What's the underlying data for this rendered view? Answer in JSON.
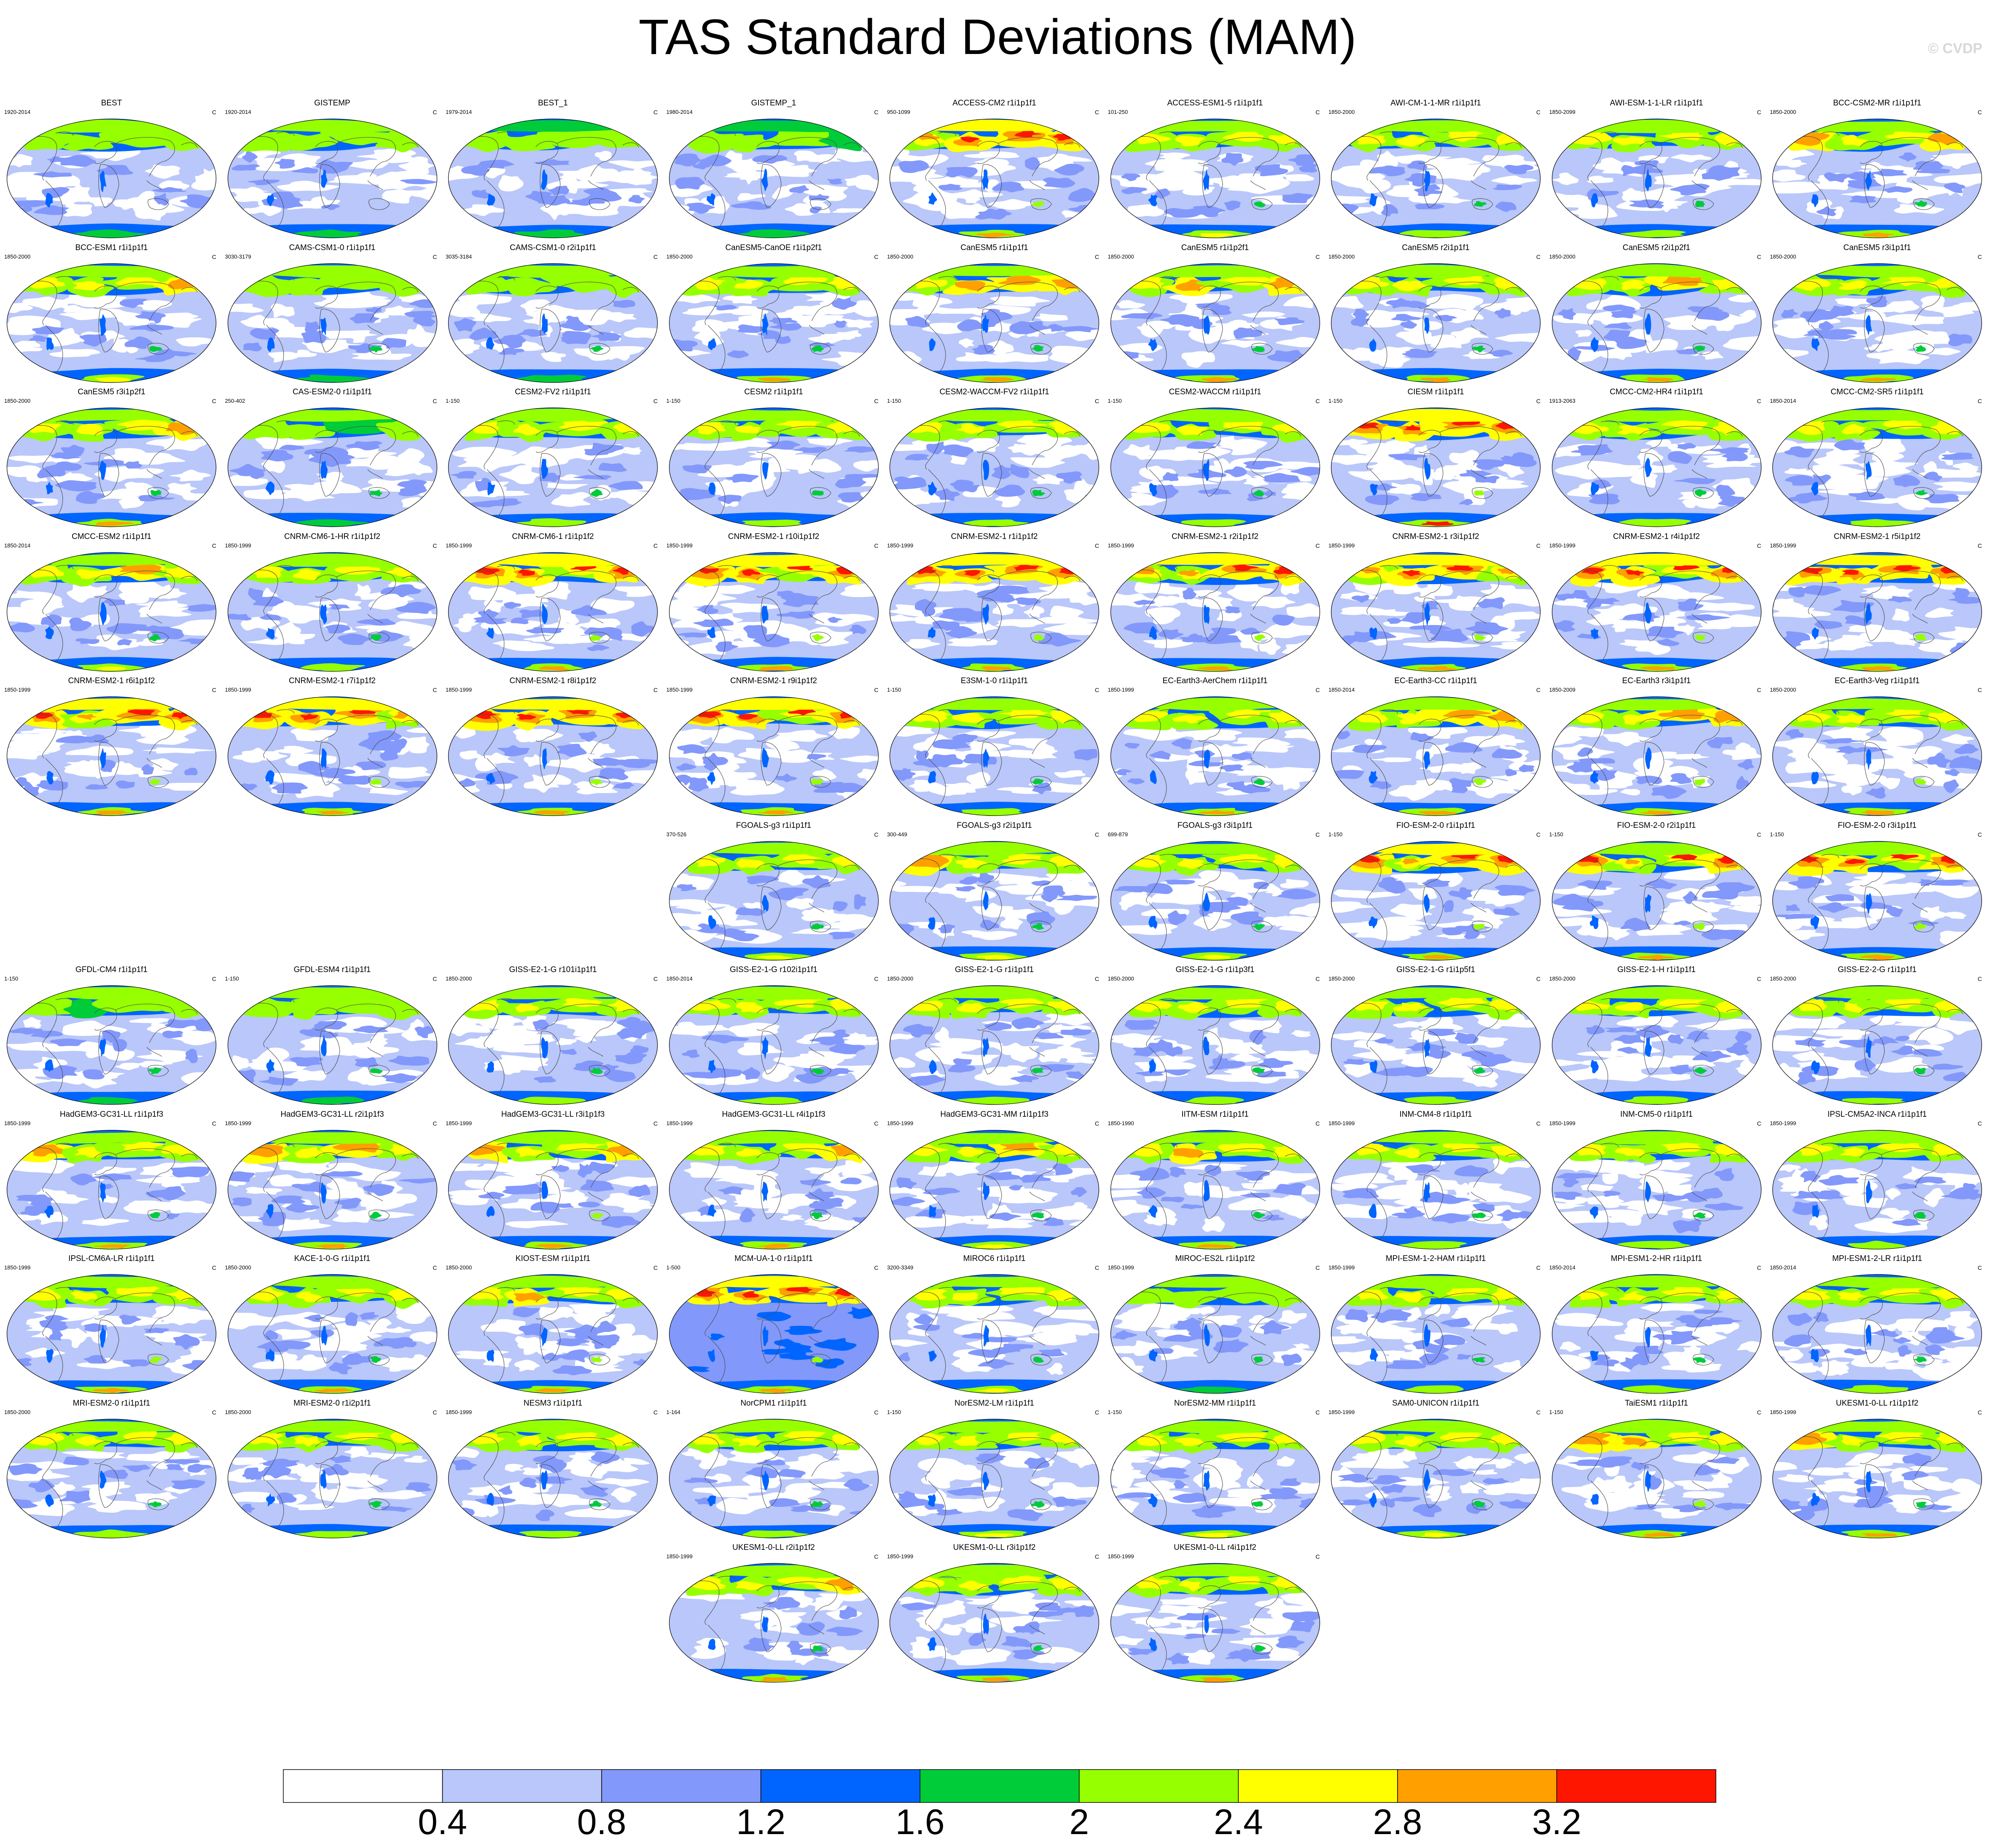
{
  "title": "TAS Standard Deviations (MAM)",
  "watermark": "© CVDP",
  "units": "C",
  "colors": {
    "levels": [
      "#ffffff",
      "#b9c7fa",
      "#8298fb",
      "#0065ff",
      "#00cc3a",
      "#96ff00",
      "#ffff00",
      "#ffa000",
      "#ff1600"
    ],
    "coastline": "#4a4a4a",
    "outline": "#000000"
  },
  "chart_data": {
    "type": "heatmap",
    "projection": "robinson",
    "legend": "bottom",
    "colorbar": {
      "ticks": [
        "0.4",
        "0.8",
        "1.2",
        "1.6",
        "2",
        "2.4",
        "2.8",
        "3.2"
      ],
      "bounds": [
        0.4,
        0.8,
        1.2,
        1.6,
        2.0,
        2.4,
        2.8,
        3.2
      ]
    },
    "layout_rows": [
      9,
      9,
      9,
      9,
      9,
      6,
      9,
      9,
      9,
      9,
      3
    ],
    "row_start_column": [
      0,
      0,
      0,
      0,
      0,
      3,
      0,
      0,
      0,
      0,
      3
    ],
    "panels": [
      {
        "name": "BEST",
        "years": "1920-2014",
        "intensity": 0.85
      },
      {
        "name": "GISTEMP",
        "years": "1920-2014",
        "intensity": 0.85
      },
      {
        "name": "BEST_1",
        "years": "1979-2014",
        "intensity": 0.8
      },
      {
        "name": "GISTEMP_1",
        "years": "1980-2014",
        "intensity": 0.8
      },
      {
        "name": "ACCESS-CM2 r1i1p1f1",
        "years": "950-1099",
        "intensity": 1.4
      },
      {
        "name": "ACCESS-ESM1-5 r1i1p1f1",
        "years": "101-250",
        "intensity": 1.1
      },
      {
        "name": "AWI-CM-1-1-MR r1i1p1f1",
        "years": "1850-2000",
        "intensity": 1.0
      },
      {
        "name": "AWI-ESM-1-1-LR r1i1p1f1",
        "years": "1850-2099",
        "intensity": 1.0
      },
      {
        "name": "BCC-CSM2-MR r1i1p1f1",
        "years": "1850-2000",
        "intensity": 1.2
      },
      {
        "name": "BCC-ESM1 r1i1p1f1",
        "years": "1850-2000",
        "intensity": 1.1
      },
      {
        "name": "CAMS-CSM1-0 r1i1p1f1",
        "years": "3030-3179",
        "intensity": 0.95
      },
      {
        "name": "CAMS-CSM1-0 r2i1p1f1",
        "years": "3035-3184",
        "intensity": 0.95
      },
      {
        "name": "CanESM5-CanOE r1i1p2f1",
        "years": "1850-2000",
        "intensity": 1.2
      },
      {
        "name": "CanESM5 r1i1p1f1",
        "years": "1850-2000",
        "intensity": 1.2
      },
      {
        "name": "CanESM5 r1i1p2f1",
        "years": "1850-2000",
        "intensity": 1.2
      },
      {
        "name": "CanESM5 r2i1p1f1",
        "years": "1850-2000",
        "intensity": 1.2
      },
      {
        "name": "CanESM5 r2i1p2f1",
        "years": "1850-2000",
        "intensity": 1.2
      },
      {
        "name": "CanESM5 r3i1p1f1",
        "years": "1850-2000",
        "intensity": 1.2
      },
      {
        "name": "CanESM5 r3i1p2f1",
        "years": "1850-2000",
        "intensity": 1.2
      },
      {
        "name": "CAS-ESM2-0 r1i1p1f1",
        "years": "250-402",
        "intensity": 0.9
      },
      {
        "name": "CESM2-FV2 r1i1p1f1",
        "years": "1-150",
        "intensity": 1.0
      },
      {
        "name": "CESM2 r1i1p1f1",
        "years": "1-150",
        "intensity": 1.0
      },
      {
        "name": "CESM2-WACCM-FV2 r1i1p1f1",
        "years": "1-150",
        "intensity": 1.0
      },
      {
        "name": "CESM2-WACCM r1i1p1f1",
        "years": "1-150",
        "intensity": 1.0
      },
      {
        "name": "CIESM r1i1p1f1",
        "years": "1-150",
        "intensity": 1.6
      },
      {
        "name": "CMCC-CM2-HR4 r1i1p1f1",
        "years": "1913-2063",
        "intensity": 1.0
      },
      {
        "name": "CMCC-CM2-SR5 r1i1p1f1",
        "years": "1850-2014",
        "intensity": 1.0
      },
      {
        "name": "CMCC-ESM2 r1i1p1f1",
        "years": "1850-2014",
        "intensity": 1.1
      },
      {
        "name": "CNRM-CM6-1-HR r1i1p1f2",
        "years": "1850-1999",
        "intensity": 1.0
      },
      {
        "name": "CNRM-CM6-1 r1i1p1f2",
        "years": "1850-1999",
        "intensity": 1.45
      },
      {
        "name": "CNRM-ESM2-1 r10i1p1f2",
        "years": "1850-1999",
        "intensity": 1.45
      },
      {
        "name": "CNRM-ESM2-1 r1i1p1f2",
        "years": "1850-1999",
        "intensity": 1.5
      },
      {
        "name": "CNRM-ESM2-1 r2i1p1f2",
        "years": "1850-1999",
        "intensity": 1.45
      },
      {
        "name": "CNRM-ESM2-1 r3i1p1f2",
        "years": "1850-1999",
        "intensity": 1.45
      },
      {
        "name": "CNRM-ESM2-1 r4i1p1f2",
        "years": "1850-1999",
        "intensity": 1.45
      },
      {
        "name": "CNRM-ESM2-1 r5i1p1f2",
        "years": "1850-1999",
        "intensity": 1.45
      },
      {
        "name": "CNRM-ESM2-1 r6i1p1f2",
        "years": "1850-1999",
        "intensity": 1.5
      },
      {
        "name": "CNRM-ESM2-1 r7i1p1f2",
        "years": "1850-1999",
        "intensity": 1.45
      },
      {
        "name": "CNRM-ESM2-1 r8i1p1f2",
        "years": "1850-1999",
        "intensity": 1.45
      },
      {
        "name": "CNRM-ESM2-1 r9i1p1f2",
        "years": "1850-1999",
        "intensity": 1.5
      },
      {
        "name": "E3SM-1-0 r1i1p1f1",
        "years": "1-150",
        "intensity": 1.0
      },
      {
        "name": "EC-Earth3-AerChem r1i1p1f1",
        "years": "1850-1999",
        "intensity": 1.2
      },
      {
        "name": "EC-Earth3-CC r1i1p1f1",
        "years": "1850-2014",
        "intensity": 1.3
      },
      {
        "name": "EC-Earth3 r3i1p1f1",
        "years": "1850-2009",
        "intensity": 1.3
      },
      {
        "name": "EC-Earth3-Veg r1i1p1f1",
        "years": "1850-2000",
        "intensity": 1.3
      },
      {
        "name": "FGOALS-g3 r1i1p1f1",
        "years": "370-526",
        "intensity": 1.1
      },
      {
        "name": "FGOALS-g3 r2i1p1f1",
        "years": "300-449",
        "intensity": 1.1
      },
      {
        "name": "FGOALS-g3 r3i1p1f1",
        "years": "699-879",
        "intensity": 1.1
      },
      {
        "name": "FIO-ESM-2-0 r1i1p1f1",
        "years": "1-150",
        "intensity": 1.5
      },
      {
        "name": "FIO-ESM-2-0 r2i1p1f1",
        "years": "1-150",
        "intensity": 1.35
      },
      {
        "name": "FIO-ESM-2-0 r3i1p1f1",
        "years": "1-150",
        "intensity": 1.35
      },
      {
        "name": "GFDL-CM4 r1i1p1f1",
        "years": "1-150",
        "intensity": 0.9
      },
      {
        "name": "GFDL-ESM4 r1i1p1f1",
        "years": "1-150",
        "intensity": 0.9
      },
      {
        "name": "GISS-E2-1-G r101i1p1f1",
        "years": "1850-2000",
        "intensity": 1.0
      },
      {
        "name": "GISS-E2-1-G r102i1p1f1",
        "years": "1850-2014",
        "intensity": 1.0
      },
      {
        "name": "GISS-E2-1-G r1i1p1f1",
        "years": "1850-2000",
        "intensity": 1.0
      },
      {
        "name": "GISS-E2-1-G r1i1p3f1",
        "years": "1850-2000",
        "intensity": 1.0
      },
      {
        "name": "GISS-E2-1-G r1i1p5f1",
        "years": "1850-2000",
        "intensity": 1.0
      },
      {
        "name": "GISS-E2-1-H r1i1p1f1",
        "years": "1850-2000",
        "intensity": 1.0
      },
      {
        "name": "GISS-E2-2-G r1i1p1f1",
        "years": "1850-2000",
        "intensity": 1.0
      },
      {
        "name": "HadGEM3-GC31-LL r1i1p1f3",
        "years": "1850-1999",
        "intensity": 1.2
      },
      {
        "name": "HadGEM3-GC31-LL r2i1p1f3",
        "years": "1850-1999",
        "intensity": 1.2
      },
      {
        "name": "HadGEM3-GC31-LL r3i1p1f3",
        "years": "1850-1999",
        "intensity": 1.25
      },
      {
        "name": "HadGEM3-GC31-LL r4i1p1f3",
        "years": "1850-1999",
        "intensity": 1.2
      },
      {
        "name": "HadGEM3-GC31-MM r1i1p1f3",
        "years": "1850-1999",
        "intensity": 1.1
      },
      {
        "name": "IITM-ESM r1i1p1f1",
        "years": "1850-1990",
        "intensity": 1.2
      },
      {
        "name": "INM-CM4-8 r1i1p1f1",
        "years": "1850-1999",
        "intensity": 1.0
      },
      {
        "name": "INM-CM5-0 r1i1p1f1",
        "years": "1850-1999",
        "intensity": 1.0
      },
      {
        "name": "IPSL-CM5A2-INCA r1i1p1f1",
        "years": "1850-1999",
        "intensity": 1.0
      },
      {
        "name": "IPSL-CM6A-LR r1i1p1f1",
        "years": "1850-1999",
        "intensity": 1.25
      },
      {
        "name": "KACE-1-0-G r1i1p1f1",
        "years": "1850-2000",
        "intensity": 1.2
      },
      {
        "name": "KIOST-ESM r1i1p1f1",
        "years": "1850-2000",
        "intensity": 1.25
      },
      {
        "name": "MCM-UA-1-0 r1i1p1f1",
        "years": "1-500",
        "intensity": 1.55,
        "ocean_level": 2
      },
      {
        "name": "MIROC6 r1i1p1f1",
        "years": "3200-3349",
        "intensity": 1.05
      },
      {
        "name": "MIROC-ES2L r1i1p1f2",
        "years": "1850-1999",
        "intensity": 0.95
      },
      {
        "name": "MPI-ESM-1-2-HAM r1i1p1f1",
        "years": "1850-1999",
        "intensity": 1.0
      },
      {
        "name": "MPI-ESM1-2-HR r1i1p1f1",
        "years": "1850-2014",
        "intensity": 1.0
      },
      {
        "name": "MPI-ESM1-2-LR r1i1p1f1",
        "years": "1850-2014",
        "intensity": 1.0
      },
      {
        "name": "MRI-ESM2-0 r1i1p1f1",
        "years": "1850-2000",
        "intensity": 1.0
      },
      {
        "name": "MRI-ESM2-0 r1i2p1f1",
        "years": "1850-2000",
        "intensity": 1.0
      },
      {
        "name": "NESM3 r1i1p1f1",
        "years": "1850-1999",
        "intensity": 1.0
      },
      {
        "name": "NorCPM1 r1i1p1f1",
        "years": "1-164",
        "intensity": 1.0
      },
      {
        "name": "NorESM2-LM r1i1p1f1",
        "years": "1-150",
        "intensity": 1.05
      },
      {
        "name": "NorESM2-MM r1i1p1f1",
        "years": "1-150",
        "intensity": 1.05
      },
      {
        "name": "SAM0-UNICON r1i1p1f1",
        "years": "1850-1999",
        "intensity": 1.05
      },
      {
        "name": "TaiESM1 r1i1p1f1",
        "years": "1-150",
        "intensity": 1.3
      },
      {
        "name": "UKESM1-0-LL r1i1p1f2",
        "years": "1850-1999",
        "intensity": 1.15
      },
      {
        "name": "UKESM1-0-LL r2i1p1f2",
        "years": "1850-1999",
        "intensity": 1.15
      },
      {
        "name": "UKESM1-0-LL r3i1p1f2",
        "years": "1850-1999",
        "intensity": 1.15
      },
      {
        "name": "UKESM1-0-LL r4i1p1f2",
        "years": "1850-1999",
        "intensity": 1.15
      }
    ]
  }
}
